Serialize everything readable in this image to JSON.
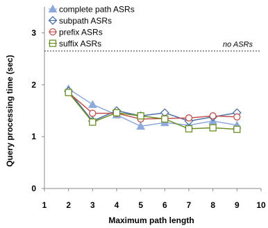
{
  "chart_data": {
    "type": "line",
    "xlabel": "Maximum path length",
    "ylabel": "Query processing time (sec)",
    "xlim": [
      1,
      10
    ],
    "ylim": [
      0,
      3.5
    ],
    "xticks": [
      1,
      2,
      3,
      4,
      5,
      6,
      7,
      8,
      9,
      10
    ],
    "yticks": [
      0,
      1,
      2,
      3
    ],
    "x": [
      2,
      3,
      4,
      5,
      6,
      7,
      8,
      9
    ],
    "grid": false,
    "legend_position": "top-left",
    "series": [
      {
        "name": "complete path ASRs",
        "marker": "triangle",
        "color": "#8EA9DB",
        "values": [
          1.92,
          1.62,
          1.42,
          1.2,
          1.27,
          1.22,
          1.3,
          1.22
        ]
      },
      {
        "name": "subpath ASRs",
        "marker": "diamond",
        "color": "#4A6FA5",
        "values": [
          1.88,
          1.3,
          1.5,
          1.4,
          1.46,
          1.3,
          1.38,
          1.46
        ]
      },
      {
        "name": "prefix ASRs",
        "marker": "circle",
        "color": "#C0504D",
        "values": [
          1.85,
          1.45,
          1.45,
          1.34,
          1.35,
          1.36,
          1.4,
          1.38
        ]
      },
      {
        "name": "suffix ASRs",
        "marker": "square",
        "color": "#6B8E23",
        "values": [
          1.85,
          1.28,
          1.46,
          1.4,
          1.34,
          1.15,
          1.17,
          1.14
        ]
      }
    ],
    "reference_lines": [
      {
        "y": 2.65,
        "label": "no ASRs",
        "style": "dotted"
      }
    ]
  }
}
